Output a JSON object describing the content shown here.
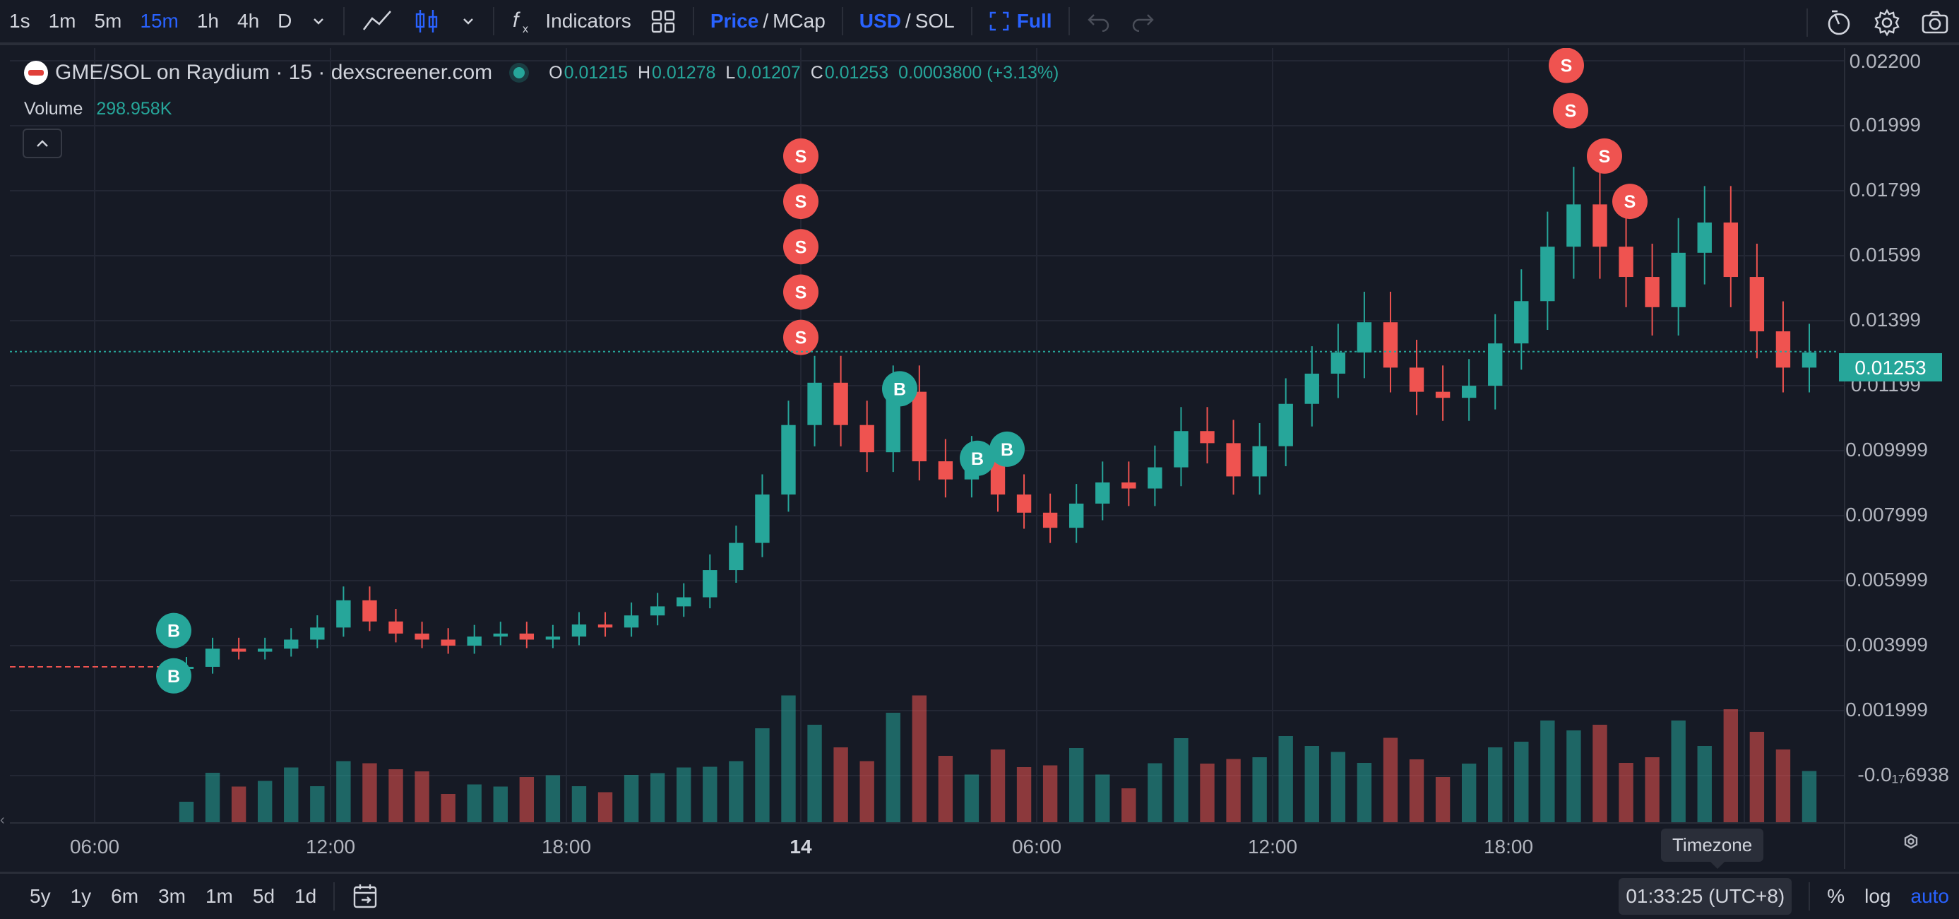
{
  "toolbar": {
    "intervals": [
      "1s",
      "1m",
      "5m",
      "15m",
      "1h",
      "4h",
      "D"
    ],
    "active_interval": "15m",
    "indicators_label": "Indicators",
    "price_label": "Price",
    "slash": "/",
    "mcap_label": "MCap",
    "usd_label": "USD",
    "sol_label": "SOL",
    "full_label": "Full"
  },
  "legend": {
    "title": "GME/SOL on Raydium · 15 · dexscreener.com",
    "o_key": "O",
    "o_val": "0.01215",
    "h_key": "H",
    "h_val": "0.01278",
    "l_key": "L",
    "l_val": "0.01207",
    "c_key": "C",
    "c_val": "0.01253",
    "change": "0.0003800 (+3.13%)",
    "volume_label": "Volume",
    "volume_value": "298.958K"
  },
  "price_axis": {
    "ticks": [
      "0.02200",
      "0.01999",
      "0.01799",
      "0.01599",
      "0.01399",
      "0.01199",
      "0.009999",
      "0.007999",
      "0.005999",
      "0.003999",
      "0.001999",
      "-0.0₁₇6938"
    ],
    "current_price": "0.01253"
  },
  "time_axis": {
    "ticks": [
      "06:00",
      "12:00",
      "18:00",
      "14",
      "06:00",
      "12:00",
      "18:00"
    ]
  },
  "bottombar": {
    "ranges": [
      "5y",
      "1y",
      "6m",
      "3m",
      "1m",
      "5d",
      "1d"
    ],
    "clock": "01:33:25 (UTC+8)",
    "percent": "%",
    "log": "log",
    "auto": "auto",
    "tooltip": "Timezone"
  },
  "markers": {
    "buy": "B",
    "sell": "S"
  },
  "colors": {
    "up": "#26a69a",
    "down": "#ef5350",
    "accent": "#2962ff",
    "background": "#161a25"
  },
  "chart_data": {
    "type": "candlestick",
    "title": "GME/SOL on Raydium · 15 · dexscreener.com",
    "interval": "15",
    "ylim": [
      -0.0015,
      0.0222
    ],
    "x_range": [
      "03:00",
      "01:30 (+1 day)"
    ],
    "last": {
      "open": 0.01215,
      "high": 0.01278,
      "low": 0.01207,
      "close": 0.01253,
      "change": 0.00038,
      "change_pct": 3.13
    },
    "volume_last": "298.958K",
    "series_close": [
      0.0021,
      0.0027,
      0.0026,
      0.0027,
      0.003,
      0.0034,
      0.0043,
      0.0036,
      0.0032,
      0.003,
      0.0028,
      0.0031,
      0.0032,
      0.003,
      0.0031,
      0.0035,
      0.0034,
      0.0038,
      0.0041,
      0.0044,
      0.0053,
      0.0062,
      0.0078,
      0.0101,
      0.0115,
      0.0101,
      0.0092,
      0.0112,
      0.0089,
      0.0083,
      0.009,
      0.0078,
      0.0072,
      0.0067,
      0.0075,
      0.0082,
      0.008,
      0.0087,
      0.0099,
      0.0095,
      0.0084,
      0.0094,
      0.0108,
      0.0118,
      0.0125,
      0.0135,
      0.012,
      0.0112,
      0.011,
      0.0114,
      0.0128,
      0.0142,
      0.016,
      0.0174,
      0.016,
      0.015,
      0.014,
      0.0158,
      0.0168,
      0.015,
      0.0132,
      0.012,
      0.0125
    ],
    "markers": [
      {
        "type": "B",
        "time": "07:00",
        "price": 0.0033
      },
      {
        "type": "B",
        "time": "07:00",
        "price": 0.0018
      },
      {
        "type": "S",
        "time": "23:45",
        "price": 0.019
      },
      {
        "type": "S",
        "time": "23:45",
        "price": 0.0175
      },
      {
        "type": "S",
        "time": "23:45",
        "price": 0.016
      },
      {
        "type": "S",
        "time": "23:45",
        "price": 0.0145
      },
      {
        "type": "S",
        "time": "23:45",
        "price": 0.013
      },
      {
        "type": "B",
        "time": "02:00",
        "price": 0.0113
      },
      {
        "type": "B",
        "time": "04:00",
        "price": 0.009
      },
      {
        "type": "B",
        "time": "05:00",
        "price": 0.0093
      },
      {
        "type": "S",
        "time": "20:00",
        "price": 0.022
      },
      {
        "type": "S",
        "time": "20:30",
        "price": 0.0205
      },
      {
        "type": "S",
        "time": "21:00",
        "price": 0.019
      },
      {
        "type": "S",
        "time": "21:00",
        "price": 0.0175
      }
    ]
  }
}
